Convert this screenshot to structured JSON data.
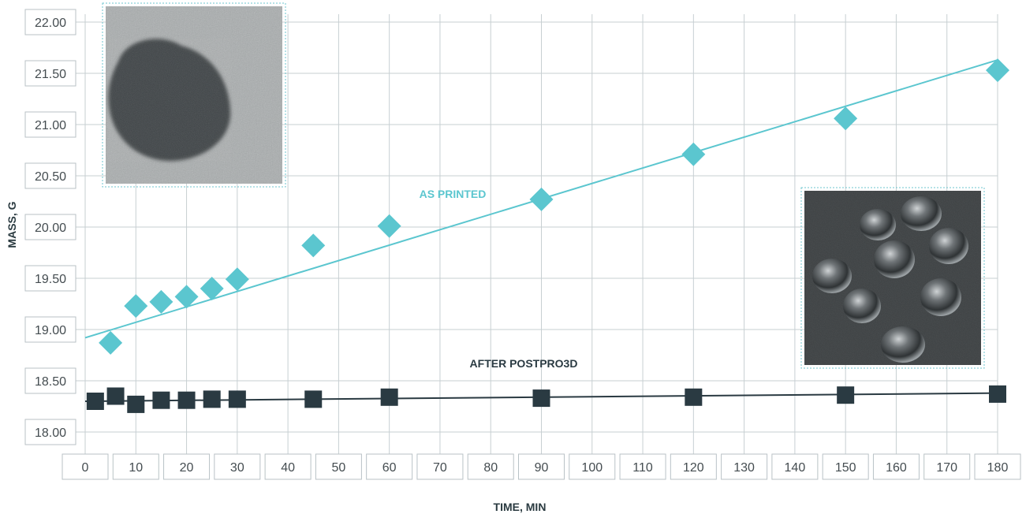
{
  "chart_data": {
    "type": "scatter",
    "title": "",
    "xlabel": "TIME, MIN",
    "ylabel": "MASS, G",
    "x_ticks": [
      0,
      10,
      20,
      30,
      40,
      50,
      60,
      70,
      80,
      90,
      100,
      110,
      120,
      130,
      140,
      150,
      160,
      170,
      180
    ],
    "x_tick_labels": [
      "0",
      "10",
      "20",
      "30",
      "40",
      "50",
      "60",
      "70",
      "80",
      "90",
      "100",
      "110",
      "120",
      "130",
      "140",
      "150",
      "160",
      "170",
      "180"
    ],
    "y_ticks": [
      18.0,
      18.5,
      19.0,
      19.5,
      20.0,
      20.5,
      21.0,
      21.5,
      22.0
    ],
    "y_tick_labels": [
      "18.00",
      "18.50",
      "19.00",
      "19.50",
      "20.00",
      "20.50",
      "21.00",
      "21.50",
      "22.00"
    ],
    "xlim": [
      0,
      180
    ],
    "ylim": [
      18.0,
      22.0
    ],
    "grid": true,
    "series": [
      {
        "name": "AS PRINTED",
        "marker": "diamond",
        "color": "#5bc6cf",
        "x": [
          5,
          10,
          15,
          20,
          25,
          30,
          45,
          60,
          90,
          120,
          150,
          180
        ],
        "y": [
          18.87,
          19.23,
          19.27,
          19.32,
          19.4,
          19.49,
          19.82,
          20.01,
          20.27,
          20.71,
          21.06,
          21.53
        ],
        "trendline": {
          "x": [
            0,
            180
          ],
          "y": [
            18.92,
            21.63
          ]
        }
      },
      {
        "name": "AFTER POSTPRO3D",
        "marker": "square",
        "color": "#2a3a42",
        "x": [
          2,
          6,
          10,
          15,
          20,
          25,
          30,
          45,
          60,
          90,
          120,
          150,
          180
        ],
        "y": [
          18.3,
          18.35,
          18.27,
          18.31,
          18.31,
          18.32,
          18.32,
          18.32,
          18.34,
          18.33,
          18.34,
          18.36,
          18.37
        ],
        "trendline": {
          "x": [
            0,
            180
          ],
          "y": [
            18.3,
            18.38
          ]
        }
      }
    ]
  },
  "insets": [
    {
      "name": "rough-surface-photo",
      "icon": "printed-surface-texture"
    },
    {
      "name": "water-droplets-photo",
      "icon": "water-droplets-on-surface"
    }
  ]
}
